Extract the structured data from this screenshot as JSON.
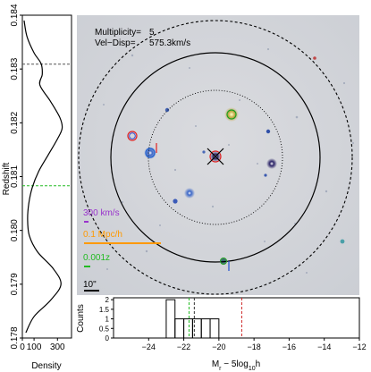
{
  "chart_data": [
    {
      "type": "line",
      "orientation": "vertical-density",
      "ylabel": "Redshift",
      "xlabel": "Density",
      "ylim": [
        0.178,
        0.184
      ],
      "xlim": [
        0,
        420
      ],
      "yticks": [
        "0.178",
        "0.179",
        "0.180",
        "0.181",
        "0.182",
        "0.183",
        "0.184"
      ],
      "ytick_values": [
        0.178,
        0.179,
        0.18,
        0.181,
        0.182,
        0.183,
        0.184
      ],
      "xticks": [
        "0",
        "100",
        "300"
      ],
      "xtick_values": [
        0,
        100,
        300
      ],
      "density_curve": {
        "z": [
          0.1781,
          0.1784,
          0.1787,
          0.179,
          0.1793,
          0.1796,
          0.1799,
          0.1802,
          0.1805,
          0.1808,
          0.1811,
          0.1814,
          0.1817,
          0.1819,
          0.1821,
          0.1824,
          0.1827,
          0.1829,
          0.1831,
          0.1833,
          0.1836,
          0.1839
        ],
        "density": [
          30,
          100,
          240,
          330,
          260,
          130,
          60,
          45,
          55,
          85,
          140,
          220,
          300,
          340,
          320,
          240,
          150,
          170,
          160,
          100,
          40,
          15
        ]
      },
      "reference_lines": [
        {
          "z": 0.18309,
          "color": "#555555",
          "style": "dashed"
        },
        {
          "z": 0.18083,
          "color": "#22bb22",
          "style": "dashed"
        }
      ]
    },
    {
      "type": "bar",
      "xlabel": "M_r - 5log10h",
      "ylabel": "Counts",
      "xlim": [
        -26,
        -12
      ],
      "ylim": [
        0,
        2.1
      ],
      "xticks": [
        "−24",
        "−22",
        "−20",
        "−18",
        "−16",
        "−14",
        "−12"
      ],
      "xtick_values": [
        -24,
        -22,
        -20,
        -18,
        -16,
        -14,
        -12
      ],
      "yticks": [
        "0",
        "0.5",
        "1",
        "1.5",
        "2"
      ],
      "ytick_values": [
        0,
        0.5,
        1,
        1.5,
        2
      ],
      "bins": [
        {
          "x0": -23.0,
          "x1": -22.5,
          "count": 2
        },
        {
          "x0": -22.5,
          "x1": -22.0,
          "count": 1
        },
        {
          "x0": -22.0,
          "x1": -21.5,
          "count": 1
        },
        {
          "x0": -21.5,
          "x1": -21.0,
          "count": 1
        },
        {
          "x0": -21.0,
          "x1": -20.5,
          "count": 1
        },
        {
          "x0": -20.5,
          "x1": -20.0,
          "count": 1
        }
      ],
      "reference_lines": [
        {
          "x": -21.7,
          "color": "#22bb22",
          "style": "dashed"
        },
        {
          "x": -21.4,
          "color": "#333333",
          "style": "dashed"
        },
        {
          "x": -18.7,
          "color": "#cc2222",
          "style": "dashed"
        }
      ]
    }
  ],
  "sky_image": {
    "multiplicity_label": "Multiplicity=",
    "multiplicity_value": "5",
    "veldisp_label": "Vel−Disp=",
    "veldisp_value": "575.3km/s",
    "scale_bars": [
      {
        "label": "300 km/s",
        "color": "#9933cc"
      },
      {
        "label": "0.1 Mpc/h",
        "color": "#ff9900"
      },
      {
        "label": "0.001z",
        "color": "#22bb22"
      },
      {
        "label": "10\"",
        "color": "#000000"
      }
    ]
  }
}
